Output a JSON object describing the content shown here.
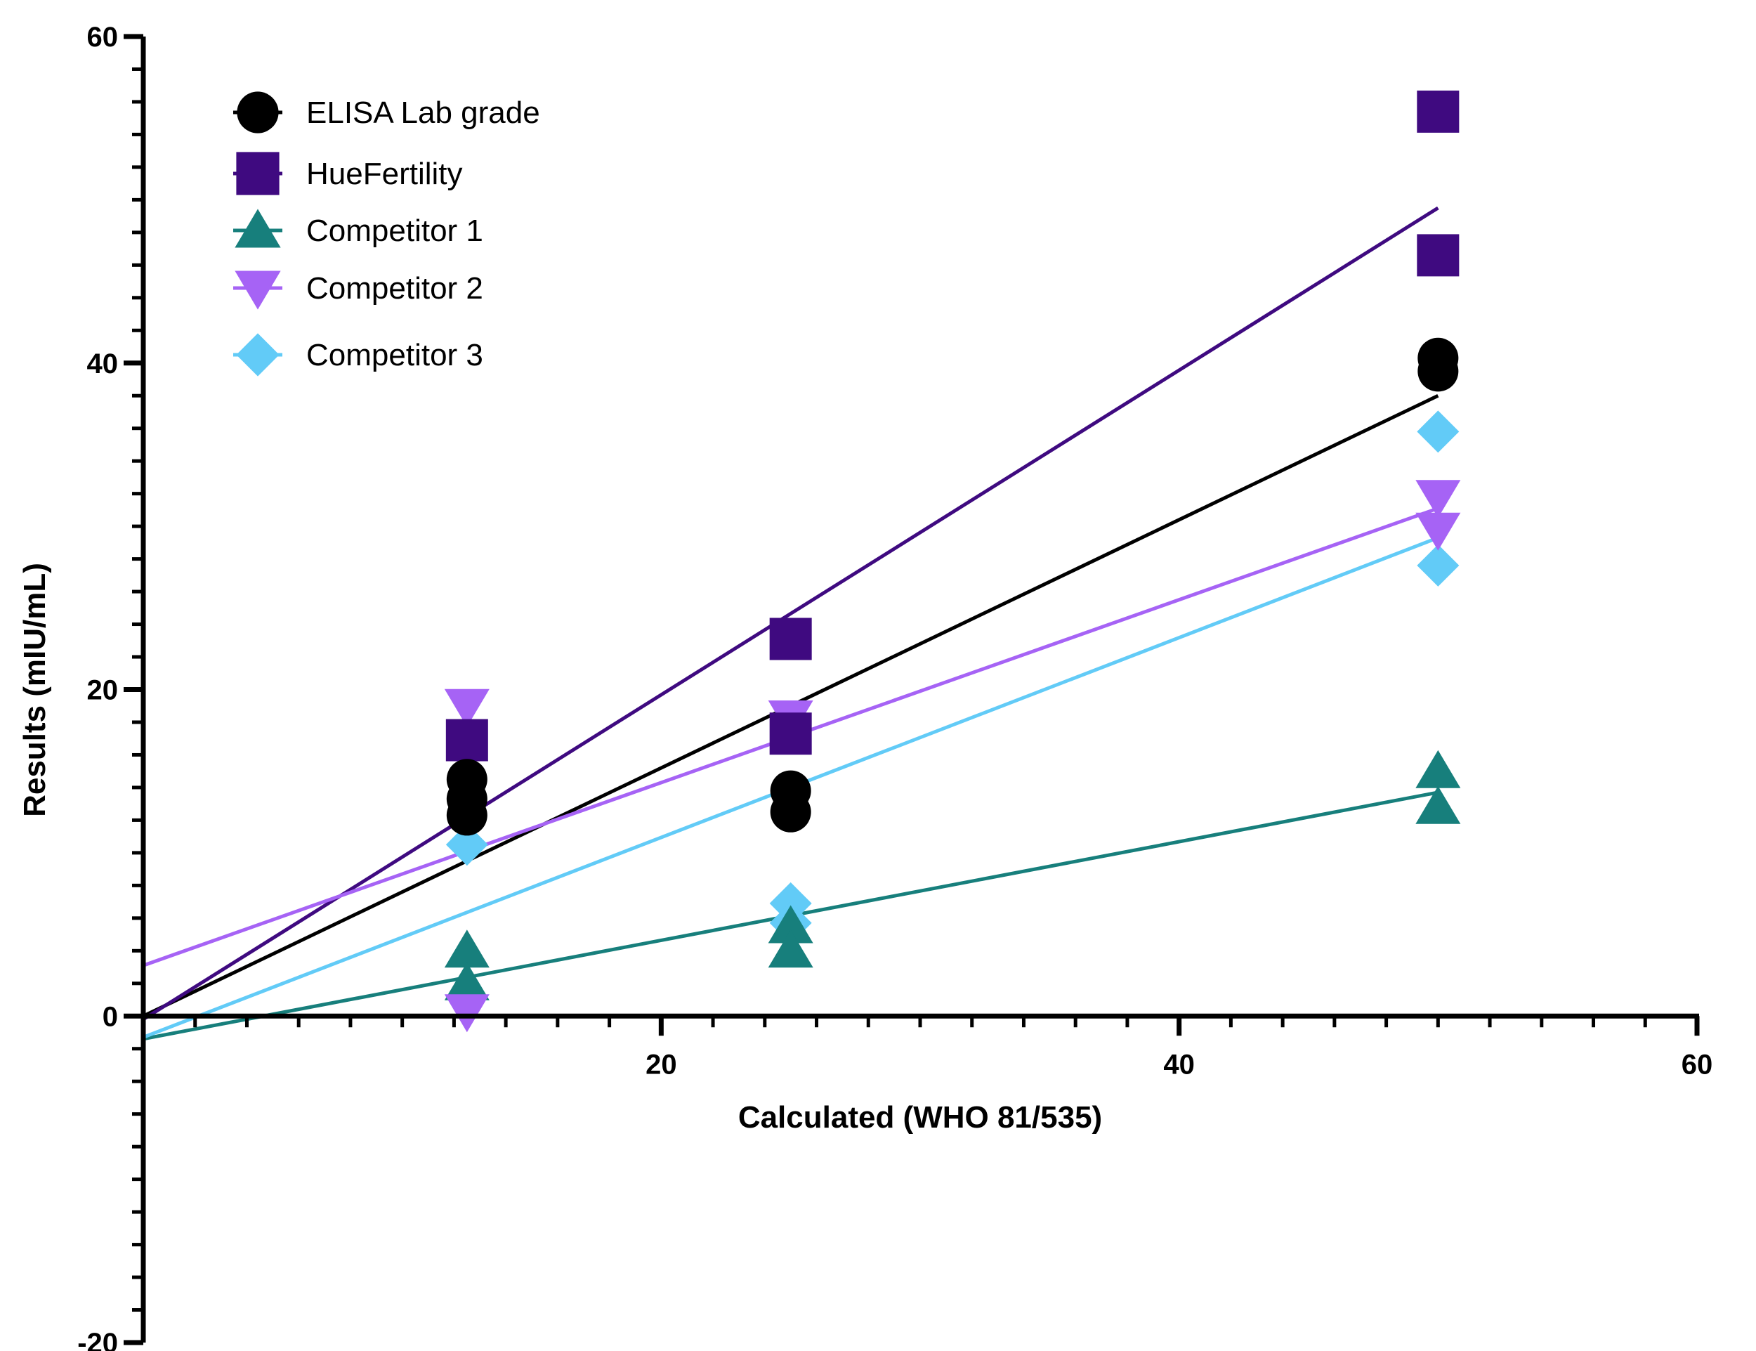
{
  "chart_data": {
    "type": "scatter",
    "title": "",
    "xlabel": "Calculated (WHO 81/535)",
    "ylabel": "Results (mIU/mL)",
    "xlim": [
      0,
      60
    ],
    "ylim": [
      -20,
      60
    ],
    "x_ticks": [
      "20",
      "40",
      "60"
    ],
    "y_ticks": [
      "60",
      "40",
      "20",
      "0",
      "-20"
    ],
    "grid": false,
    "legend_position": "top-left",
    "series": [
      {
        "name": "ELISA Lab grade",
        "marker": "circle",
        "color": "#000000",
        "points": [
          [
            12.5,
            14.5
          ],
          [
            12.5,
            13.3
          ],
          [
            12.5,
            12.3
          ],
          [
            25,
            13.8
          ],
          [
            25,
            12.5
          ],
          [
            50,
            40.3
          ],
          [
            50,
            39.5
          ]
        ],
        "fit_line": [
          [
            0,
            0
          ],
          [
            50,
            38
          ]
        ]
      },
      {
        "name": "HueFertility",
        "marker": "square",
        "color": "#3f0a80",
        "points": [
          [
            12.5,
            16.9
          ],
          [
            25,
            23.1
          ],
          [
            25,
            17.3
          ],
          [
            50,
            55.4
          ],
          [
            50,
            46.6
          ]
        ],
        "fit_line": [
          [
            0,
            -0.2
          ],
          [
            50,
            49.5
          ]
        ]
      },
      {
        "name": "Competitor 1",
        "marker": "triangle-up",
        "color": "#177f7c",
        "points": [
          [
            12.5,
            4.0
          ],
          [
            12.5,
            2.0
          ],
          [
            25,
            5.5
          ],
          [
            25,
            4.0
          ],
          [
            50,
            15.0
          ],
          [
            50,
            12.8
          ]
        ],
        "fit_line": [
          [
            0,
            -1.4
          ],
          [
            50,
            13.7
          ]
        ]
      },
      {
        "name": "Competitor 2",
        "marker": "triangle-down",
        "color": "#a663f5",
        "points": [
          [
            12.5,
            19.0
          ],
          [
            12.5,
            0.3
          ],
          [
            25,
            18.3
          ],
          [
            50,
            31.8
          ],
          [
            50,
            29.8
          ]
        ],
        "fit_line": [
          [
            0,
            3.1
          ],
          [
            50,
            31.1
          ]
        ]
      },
      {
        "name": "Competitor 3",
        "marker": "diamond",
        "color": "#62cbf7",
        "points": [
          [
            12.5,
            10.5
          ],
          [
            25,
            6.9
          ],
          [
            25,
            5.7
          ],
          [
            50,
            35.8
          ],
          [
            50,
            27.6
          ]
        ],
        "fit_line": [
          [
            0,
            -1.3
          ],
          [
            50,
            29.3
          ]
        ]
      }
    ]
  }
}
